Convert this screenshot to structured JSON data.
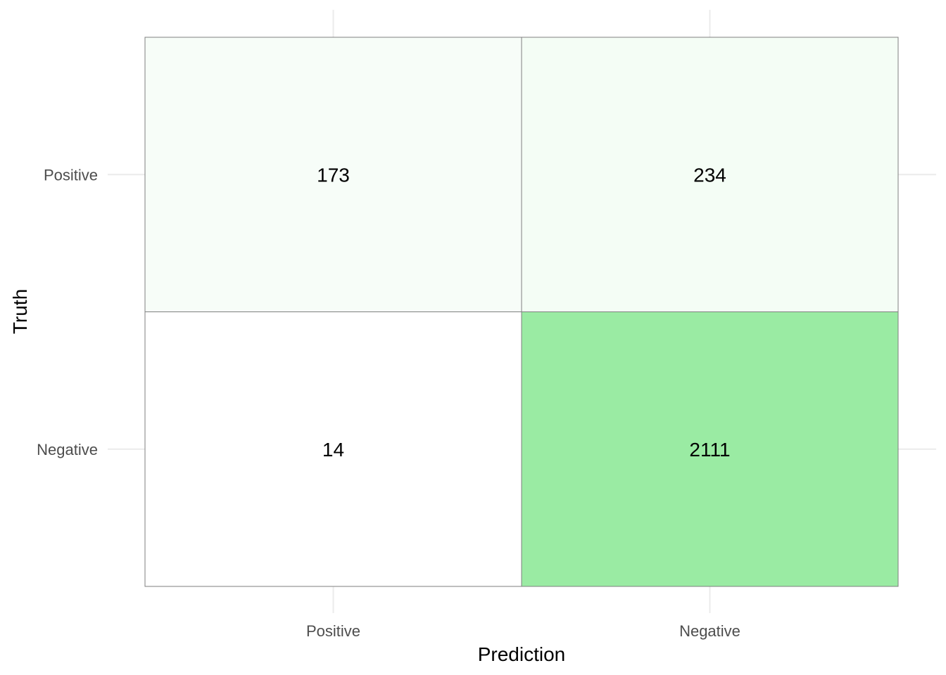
{
  "chart_data": {
    "type": "heatmap",
    "title": "",
    "xlabel": "Prediction",
    "ylabel": "Truth",
    "x_categories": [
      "Positive",
      "Negative"
    ],
    "y_categories": [
      "Positive",
      "Negative"
    ],
    "cells": [
      {
        "truth": "Positive",
        "prediction": "Positive",
        "value": 173
      },
      {
        "truth": "Positive",
        "prediction": "Negative",
        "value": 234
      },
      {
        "truth": "Negative",
        "prediction": "Positive",
        "value": 14
      },
      {
        "truth": "Negative",
        "prediction": "Negative",
        "value": 2111
      }
    ],
    "color_low": "#ffffff",
    "color_high": "#9aeba3",
    "grid": true,
    "legend": "none"
  }
}
